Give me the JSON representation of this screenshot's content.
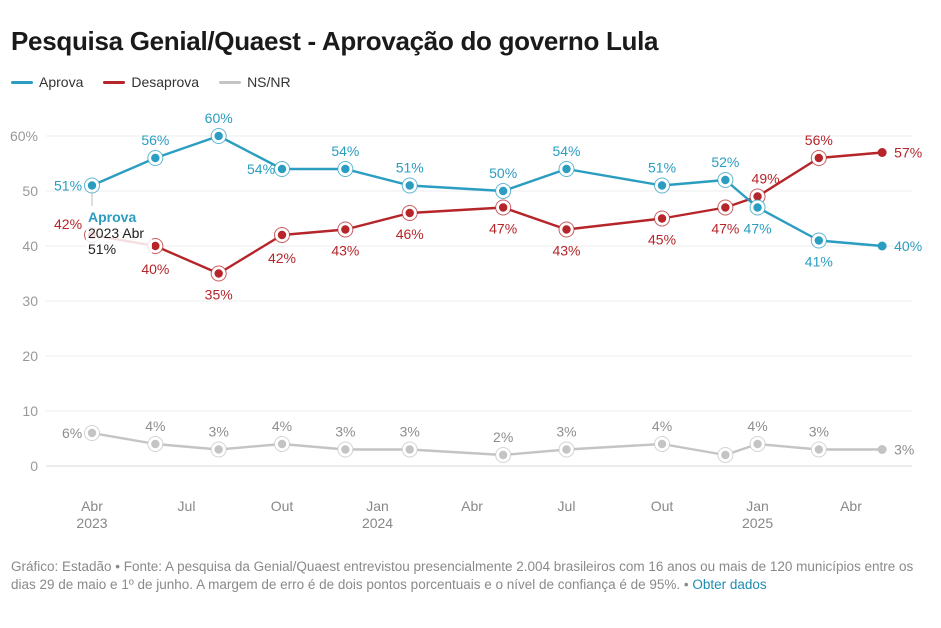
{
  "title": "Pesquisa Genial/Quaest - Aprovação do governo Lula",
  "legend": [
    {
      "label": "Aprova",
      "color": "#2a9dc0"
    },
    {
      "label": "Desaprova",
      "color": "#b5252a"
    },
    {
      "label": "NS/NR",
      "color": "#c4c4c4"
    }
  ],
  "footer": {
    "text": "Gráfico: Estadão • Fonte: A pesquisa da Genial/Quaest entrevistou presencialmente 2.004 brasileiros com 16 anos ou mais de 120 municípios entre os dias 29 de maio e 1º de junho. A margem de erro é de dois pontos porcentuais e o nível de confiança é de 95%. • ",
    "link": "Obter dados"
  },
  "tooltip": {
    "series": "Aprova",
    "date": "2023 Abr",
    "value": "51%"
  },
  "chart_data": {
    "type": "line",
    "title": "Pesquisa Genial/Quaest - Aprovação do governo Lula",
    "x": [
      "2023-04",
      "2023-06",
      "2023-08",
      "2023-10",
      "2023-12",
      "2024-02",
      "2024-05",
      "2024-07",
      "2024-10",
      "2024-12",
      "2025-01",
      "2025-03",
      "2025-05"
    ],
    "series": [
      {
        "name": "Aprova",
        "color": "#2a9dc0",
        "values": [
          51,
          56,
          60,
          54,
          54,
          51,
          50,
          54,
          51,
          52,
          47,
          41,
          40
        ],
        "labels": [
          "51%",
          "56%",
          "60%",
          "54%",
          "54%",
          "51%",
          "50%",
          "54%",
          "51%",
          "52%",
          "47%",
          "41%",
          "40%"
        ]
      },
      {
        "name": "Desaprova",
        "color": "#b5252a",
        "values": [
          42,
          40,
          35,
          42,
          43,
          46,
          47,
          43,
          45,
          47,
          49,
          56,
          57
        ],
        "labels": [
          "42%",
          "40%",
          "35%",
          "42%",
          "43%",
          "46%",
          "47%",
          "43%",
          "45%",
          "47%",
          "49%",
          "56%",
          "57%"
        ]
      },
      {
        "name": "NS/NR",
        "color": "#c4c4c4",
        "values": [
          6,
          4,
          3,
          4,
          3,
          3,
          2,
          3,
          4,
          2,
          4,
          3,
          3
        ],
        "labels": [
          "6%",
          "4%",
          "3%",
          "4%",
          "3%",
          "3%",
          "2%",
          "3%",
          "4%",
          "",
          "4%",
          "3%",
          "3%"
        ]
      }
    ],
    "yticks": [
      "0",
      "10",
      "20",
      "30",
      "40",
      "50",
      "60%"
    ],
    "ylim": [
      0,
      60
    ],
    "xticks": [
      {
        "date": "2023-04",
        "label": "Abr",
        "year": "2023"
      },
      {
        "date": "2023-07",
        "label": "Jul",
        "year": ""
      },
      {
        "date": "2023-10",
        "label": "Out",
        "year": ""
      },
      {
        "date": "2024-01",
        "label": "Jan",
        "year": "2024"
      },
      {
        "date": "2024-04",
        "label": "Abr",
        "year": ""
      },
      {
        "date": "2024-07",
        "label": "Jul",
        "year": ""
      },
      {
        "date": "2024-10",
        "label": "Out",
        "year": ""
      },
      {
        "date": "2025-01",
        "label": "Jan",
        "year": "2025"
      },
      {
        "date": "2025-04",
        "label": "Abr",
        "year": ""
      }
    ],
    "grid": true,
    "legend_position": "top-left"
  }
}
